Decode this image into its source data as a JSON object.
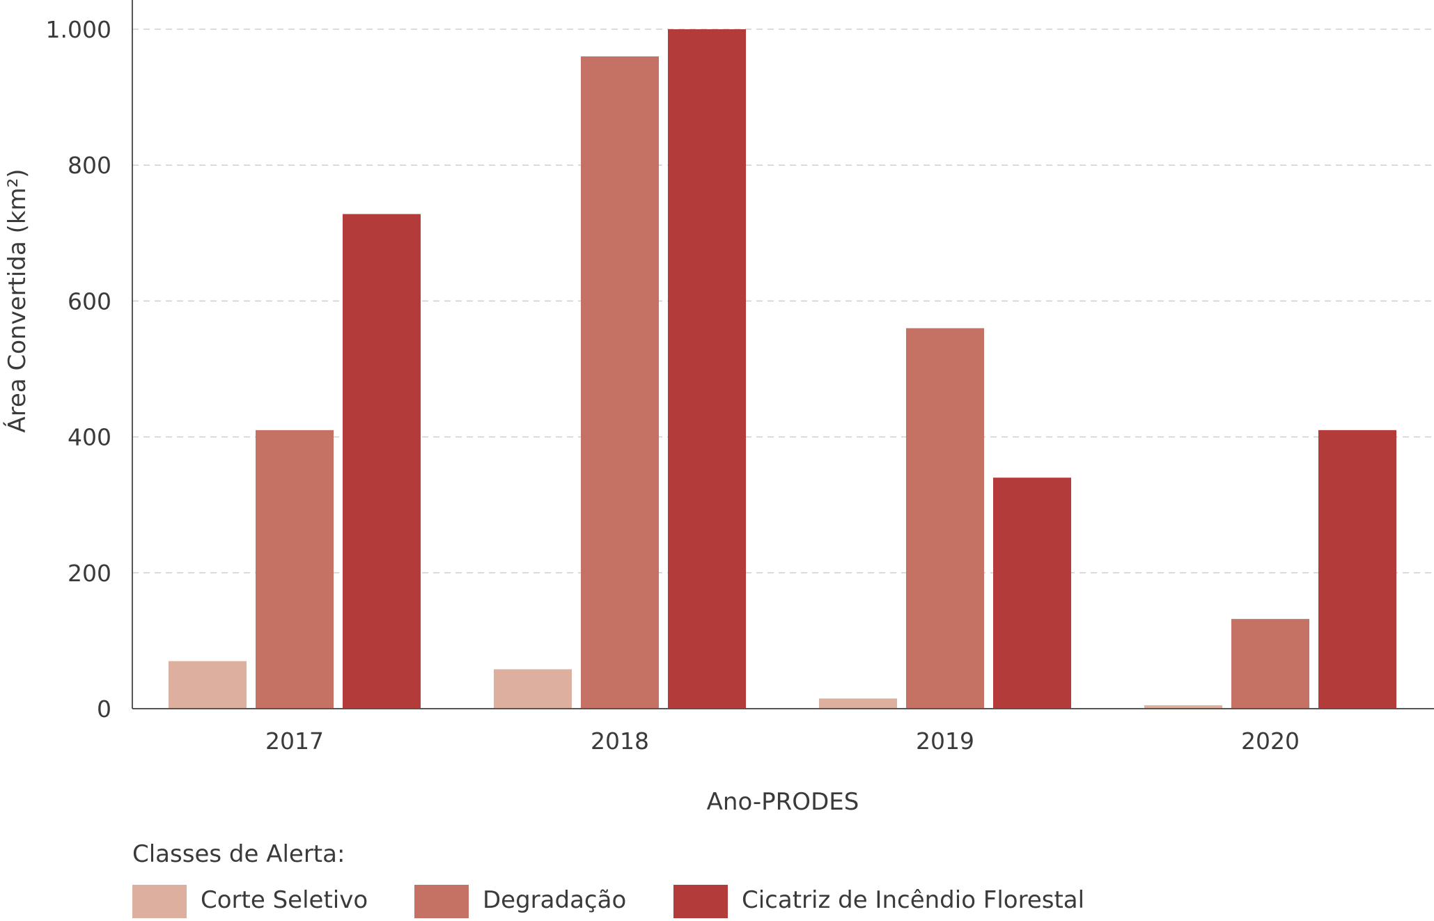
{
  "chart_data": {
    "type": "bar",
    "categories": [
      "2017",
      "2018",
      "2019",
      "2020"
    ],
    "series": [
      {
        "name": "Corte Seletivo",
        "color": "#ddaf9f",
        "values": [
          70,
          58,
          15,
          5
        ]
      },
      {
        "name": "Degradação",
        "color": "#c57163",
        "values": [
          410,
          960,
          560,
          132
        ]
      },
      {
        "name": "Cicatriz de Incêndio Florestal",
        "color": "#b33b39",
        "values": [
          728,
          1000,
          340,
          410
        ]
      }
    ],
    "xlabel": "Ano-PRODES",
    "ylabel": "Área Convertida (km²)",
    "ylim": [
      0,
      1000
    ],
    "yticks": [
      {
        "value": 0,
        "label": "0"
      },
      {
        "value": 200,
        "label": "200"
      },
      {
        "value": 400,
        "label": "400"
      },
      {
        "value": 600,
        "label": "600"
      },
      {
        "value": 800,
        "label": "800"
      },
      {
        "value": 1000,
        "label": "1.000"
      }
    ],
    "grid": true,
    "legend_title": "Classes de Alerta:",
    "legend_position": "bottom-left"
  }
}
